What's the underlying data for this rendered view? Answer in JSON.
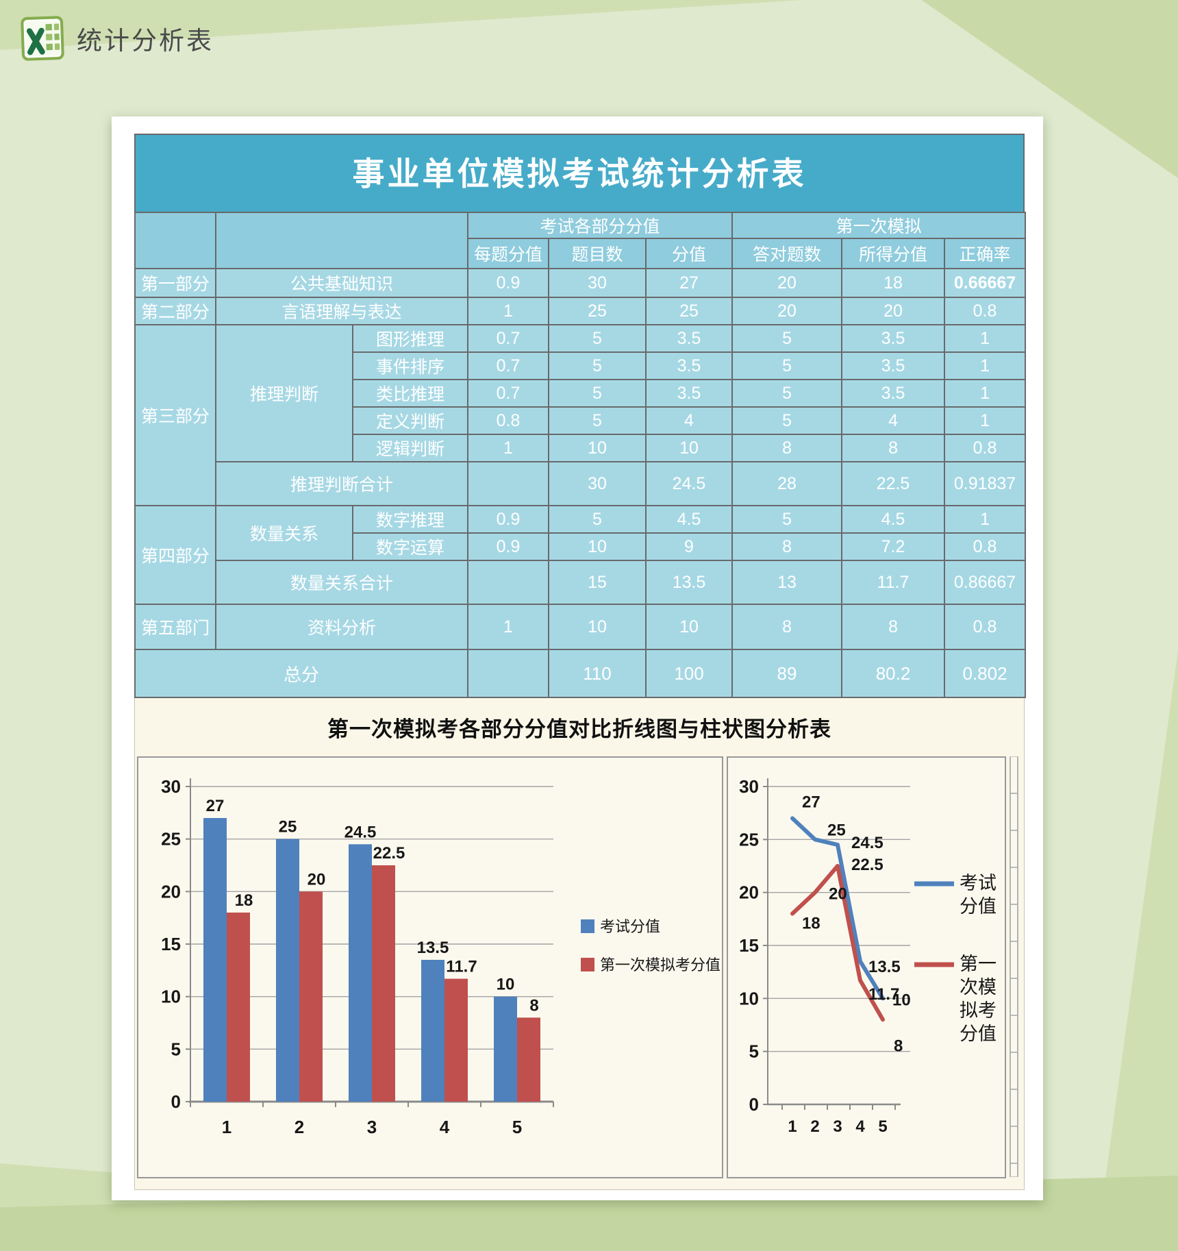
{
  "header": {
    "title": "统计分析表"
  },
  "colors": {
    "title_band": "#46abc8",
    "header_cell": "#8fccdd",
    "data_cell": "#a6d8e4",
    "alert_bg": "#f9c7cb",
    "alert_text": "#8e1b1b",
    "series_blue": "#4F81BD",
    "series_red": "#C0504D"
  },
  "table": {
    "title": "事业单位模拟考试统计分析表",
    "col_groups": [
      "考试各部分分值",
      "第一次模拟"
    ],
    "col_headers": [
      "每题分值",
      "题目数",
      "分值",
      "答对题数",
      "所得分值",
      "正确率"
    ],
    "rows": [
      {
        "part": "第一部分",
        "name": "公共基础知识",
        "values": [
          "0.9",
          "30",
          "27",
          "20",
          "18",
          "0.66667"
        ]
      },
      {
        "part": "第二部分",
        "name": "言语理解与表达",
        "values": [
          "1",
          "25",
          "25",
          "20",
          "20",
          "0.8"
        ]
      },
      {
        "part": "第三部分",
        "group": "推理判断",
        "item": "图形推理",
        "values": [
          "0.7",
          "5",
          "3.5",
          "5",
          "3.5",
          "1"
        ]
      },
      {
        "item": "事件排序",
        "values": [
          "0.7",
          "5",
          "3.5",
          "5",
          "3.5",
          "1"
        ]
      },
      {
        "item": "类比推理",
        "values": [
          "0.7",
          "5",
          "3.5",
          "5",
          "3.5",
          "1"
        ]
      },
      {
        "item": "定义判断",
        "values": [
          "0.8",
          "5",
          "4",
          "5",
          "4",
          "1"
        ]
      },
      {
        "item": "逻辑判断",
        "values": [
          "1",
          "10",
          "10",
          "8",
          "8",
          "0.8"
        ]
      },
      {
        "name": "推理判断合计",
        "values": [
          "",
          "30",
          "24.5",
          "28",
          "22.5",
          "0.91837"
        ]
      },
      {
        "part": "第四部分",
        "group": "数量关系",
        "item": "数字推理",
        "values": [
          "0.9",
          "5",
          "4.5",
          "5",
          "4.5",
          "1"
        ]
      },
      {
        "item": "数字运算",
        "values": [
          "0.9",
          "10",
          "9",
          "8",
          "7.2",
          "0.8"
        ]
      },
      {
        "name": "数量关系合计",
        "values": [
          "",
          "15",
          "13.5",
          "13",
          "11.7",
          "0.86667"
        ]
      },
      {
        "part": "第五部门",
        "name": "资料分析",
        "values": [
          "1",
          "10",
          "10",
          "8",
          "8",
          "0.8"
        ]
      },
      {
        "name": "总分",
        "values": [
          "",
          "110",
          "100",
          "89",
          "80.2",
          "0.802"
        ]
      }
    ]
  },
  "charts": {
    "section_title": "第一次模拟考各部分分值对比折线图与柱状图分析表"
  },
  "chart_data": [
    {
      "type": "bar",
      "title": "",
      "categories": [
        "1",
        "2",
        "3",
        "4",
        "5"
      ],
      "series": [
        {
          "name": "考试分值",
          "color": "#4F81BD",
          "values": [
            27,
            25,
            24.5,
            13.5,
            10
          ]
        },
        {
          "name": "第一次模拟考分值",
          "color": "#C0504D",
          "values": [
            18,
            20,
            22.5,
            11.7,
            8
          ]
        }
      ],
      "ylim": [
        0,
        30
      ],
      "ytick_step": 5,
      "grid": true,
      "legend_position": "right",
      "data_labels": true
    },
    {
      "type": "line",
      "title": "",
      "categories": [
        "1",
        "2",
        "3",
        "4",
        "5"
      ],
      "series": [
        {
          "name": "考试分值",
          "legend_lines": [
            "考试",
            "分值"
          ],
          "color": "#4F81BD",
          "values": [
            27,
            25,
            24.5,
            13.5,
            10
          ]
        },
        {
          "name": "第一次模拟考分值",
          "legend_lines": [
            "第一",
            "次模",
            "拟考",
            "分值"
          ],
          "color": "#C0504D",
          "values": [
            18,
            20,
            22.5,
            11.7,
            8
          ]
        }
      ],
      "ylim": [
        0,
        30
      ],
      "ytick_step": 5,
      "grid": true,
      "legend_position": "right",
      "data_labels": true
    }
  ]
}
